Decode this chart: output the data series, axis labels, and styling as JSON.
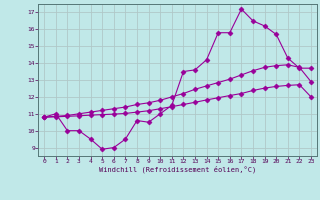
{
  "background_color": "#c0e8e8",
  "grid_color": "#b0c8c8",
  "line_color": "#990099",
  "xlim": [
    -0.5,
    23.5
  ],
  "ylim": [
    8.5,
    17.5
  ],
  "xticks": [
    0,
    1,
    2,
    3,
    4,
    5,
    6,
    7,
    8,
    9,
    10,
    11,
    12,
    13,
    14,
    15,
    16,
    17,
    18,
    19,
    20,
    21,
    22,
    23
  ],
  "yticks": [
    9,
    10,
    11,
    12,
    13,
    14,
    15,
    16,
    17
  ],
  "xlabel": "Windchill (Refroidissement éolien,°C)",
  "series1_x": [
    0,
    1,
    2,
    3,
    4,
    5,
    6,
    7,
    8,
    9,
    10,
    11,
    12,
    13,
    14,
    15,
    16,
    17,
    18,
    19,
    20,
    21,
    22,
    23
  ],
  "series1_y": [
    10.8,
    11.0,
    10.0,
    10.0,
    9.5,
    8.9,
    9.0,
    9.5,
    10.6,
    10.5,
    11.0,
    11.5,
    13.5,
    13.6,
    14.2,
    15.8,
    15.8,
    17.2,
    16.5,
    16.2,
    15.7,
    14.3,
    13.7,
    13.7
  ],
  "series2_x": [
    0,
    1,
    2,
    3,
    4,
    5,
    6,
    7,
    8,
    9,
    10,
    11,
    12,
    13,
    14,
    15,
    16,
    17,
    18,
    19,
    20,
    21,
    22,
    23
  ],
  "series2_y": [
    10.8,
    10.85,
    10.9,
    11.0,
    11.1,
    11.2,
    11.3,
    11.4,
    11.55,
    11.65,
    11.8,
    12.0,
    12.2,
    12.45,
    12.65,
    12.85,
    13.05,
    13.3,
    13.55,
    13.75,
    13.85,
    13.9,
    13.75,
    12.9
  ],
  "series3_x": [
    0,
    1,
    2,
    3,
    4,
    5,
    6,
    7,
    8,
    9,
    10,
    11,
    12,
    13,
    14,
    15,
    16,
    17,
    18,
    19,
    20,
    21,
    22,
    23
  ],
  "series3_y": [
    10.8,
    10.82,
    10.85,
    10.88,
    10.92,
    10.95,
    10.98,
    11.02,
    11.1,
    11.18,
    11.3,
    11.42,
    11.55,
    11.68,
    11.82,
    11.95,
    12.08,
    12.2,
    12.38,
    12.52,
    12.62,
    12.68,
    12.72,
    12.0
  ]
}
